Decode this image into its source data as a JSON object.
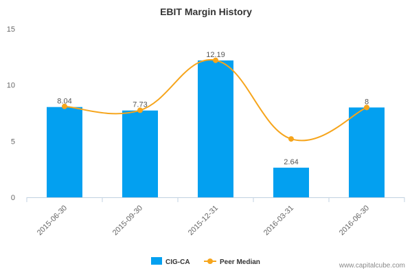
{
  "chart_data": {
    "type": "bar",
    "title": "EBIT Margin History",
    "categories": [
      "2015-06-30",
      "2015-09-30",
      "2015-12-31",
      "2016-03-31",
      "2016-06-30"
    ],
    "series": [
      {
        "name": "CIG-CA",
        "kind": "bar",
        "color": "#03a0f0",
        "values": [
          8.04,
          7.73,
          12.19,
          2.64,
          8
        ],
        "labels": [
          "8.04",
          "7.73",
          "12.19",
          "2.64",
          "8"
        ]
      },
      {
        "name": "Peer Median",
        "kind": "line",
        "color": "#f6a51c",
        "values": [
          8.1,
          7.75,
          12.2,
          5.2,
          8
        ]
      }
    ],
    "ylim": [
      0,
      15
    ],
    "yticks": [
      0,
      5,
      10,
      15
    ],
    "xlabel": "",
    "ylabel": "",
    "grid": false,
    "legend": "bottom-center"
  },
  "watermark": "www.capitalcube.com"
}
